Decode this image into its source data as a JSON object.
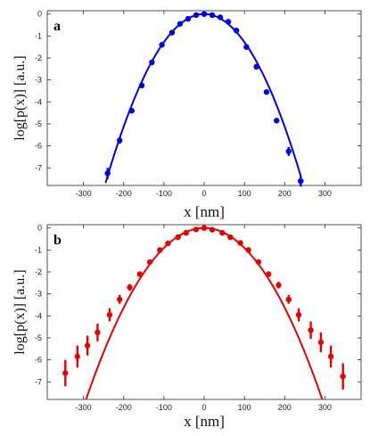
{
  "chart_data": [
    {
      "type": "scatter",
      "panel_label": "a",
      "xlabel": "x [nm]",
      "ylabel": "log[p(x)] [a.u.]",
      "xlim": [
        -390,
        390
      ],
      "ylim": [
        -7.8,
        0.15
      ],
      "xticks": [
        -300,
        -200,
        -100,
        0,
        100,
        200,
        300
      ],
      "yticks": [
        0,
        -1,
        -2,
        -3,
        -4,
        -5,
        -6,
        -7
      ],
      "color": "#0000e6",
      "grid": false,
      "series": [
        {
          "x": [
            -240,
            -210,
            -180,
            -155,
            -130,
            -105,
            -80,
            -60,
            -40,
            -20,
            0,
            20,
            40,
            60,
            80,
            105,
            130,
            155,
            180,
            210,
            240
          ],
          "y": [
            -7.25,
            -5.75,
            -4.4,
            -3.25,
            -2.2,
            -1.4,
            -0.85,
            -0.45,
            -0.22,
            -0.05,
            0,
            -0.05,
            -0.15,
            -0.35,
            -0.75,
            -1.5,
            -2.4,
            -3.55,
            -4.85,
            -6.25,
            -7.6
          ],
          "err": [
            0.25,
            0.15,
            0.1,
            0.1,
            0.08,
            0.08,
            0.06,
            0.05,
            0.05,
            0.05,
            0.05,
            0.05,
            0.05,
            0.05,
            0.06,
            0.08,
            0.08,
            0.1,
            0.12,
            0.2,
            0.25
          ]
        }
      ],
      "fit_curve": {
        "a": 0.000128,
        "xmin": -245,
        "xmax": 240
      }
    },
    {
      "type": "scatter",
      "panel_label": "b",
      "xlabel": "x [nm]",
      "ylabel": "log[p(x)] [a.u.]",
      "xlim": [
        -390,
        390
      ],
      "ylim": [
        -7.8,
        0.15
      ],
      "xticks": [
        -300,
        -200,
        -100,
        0,
        100,
        200,
        300
      ],
      "yticks": [
        0,
        -1,
        -2,
        -3,
        -4,
        -5,
        -6,
        -7
      ],
      "color": "#e60000",
      "grid": false,
      "series": [
        {
          "x": [
            -345,
            -315,
            -290,
            -265,
            -235,
            -210,
            -185,
            -160,
            -135,
            -110,
            -90,
            -65,
            -45,
            -20,
            0,
            20,
            45,
            65,
            90,
            110,
            135,
            160,
            185,
            210,
            235,
            265,
            290,
            315,
            345
          ],
          "y": [
            -6.6,
            -5.85,
            -5.35,
            -4.75,
            -3.95,
            -3.25,
            -2.7,
            -2.1,
            -1.55,
            -1.0,
            -0.7,
            -0.42,
            -0.22,
            -0.07,
            0,
            -0.08,
            -0.22,
            -0.42,
            -0.68,
            -1.0,
            -1.55,
            -2.1,
            -2.6,
            -3.25,
            -3.95,
            -4.65,
            -5.2,
            -5.85,
            -6.75
          ],
          "err": [
            0.6,
            0.5,
            0.45,
            0.4,
            0.3,
            0.2,
            0.15,
            0.12,
            0.1,
            0.08,
            0.07,
            0.06,
            0.05,
            0.05,
            0.05,
            0.05,
            0.05,
            0.06,
            0.07,
            0.08,
            0.1,
            0.12,
            0.15,
            0.2,
            0.3,
            0.4,
            0.45,
            0.5,
            0.6
          ]
        }
      ],
      "fit_curve": {
        "a": 9.05e-05,
        "xmin": -300,
        "xmax": 295
      }
    }
  ]
}
